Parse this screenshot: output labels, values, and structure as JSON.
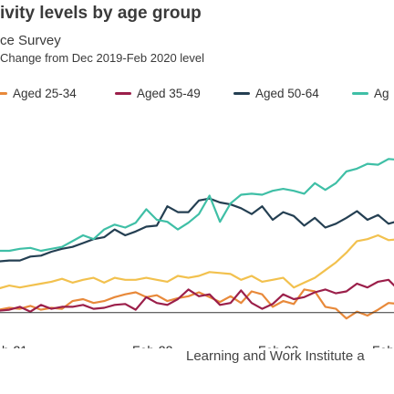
{
  "title": "ivity levels by age group",
  "subtitle": "ce Survey",
  "ylabel": "Change from Dec 2019-Feb 2020 level",
  "source": "Learning and Work Institute a",
  "legend": [
    {
      "label": "Aged 25-34",
      "color": "#e8893a"
    },
    {
      "label": "Aged 35-49",
      "color": "#9b1f4a"
    },
    {
      "label": "Aged 50-64",
      "color": "#243f52"
    },
    {
      "label": "Ag",
      "color": "#3fbfa6"
    }
  ],
  "chart_data": {
    "type": "line",
    "title": "ivity levels by age group",
    "subtitle": "ce Survey",
    "ylabel": "Change from Dec 2019-Feb 2020 level",
    "xlabel": "",
    "x_ticks": [
      "b-21",
      "Feb-22",
      "Feb-23",
      "Feb-2"
    ],
    "x_start": "Feb-21",
    "ylim": [
      -2,
      18
    ],
    "zero_line": true,
    "grid": false,
    "legend_position": "top",
    "series": [
      {
        "name": "Aged 25-34",
        "color": "#e8893a",
        "values": [
          -0.2,
          0.2,
          0.1,
          0.3,
          0.5,
          0.4,
          0.7,
          0.3,
          0.5,
          0.4,
          1.2,
          1.4,
          1.0,
          1.2,
          1.6,
          1.9,
          2.1,
          1.6,
          1.8,
          1.2,
          1.5,
          1.7,
          2.1,
          1.6,
          1.1,
          1.7,
          1.0,
          2.2,
          1.9,
          0.6,
          1.2,
          0.9,
          2.4,
          2.2,
          0.6,
          0.4,
          -0.6,
          0.1,
          -0.3,
          0.3,
          1.0,
          0.9,
          2.0,
          3.4,
          2.0,
          1.8,
          1.6
        ]
      },
      {
        "name": "Aged 35-49",
        "color": "#9b1f4a",
        "values": [
          0.2,
          -0.3,
          0.4,
          0.2,
          0.3,
          0.6,
          0.1,
          0.8,
          0.4,
          0.6,
          0.6,
          0.8,
          0.4,
          0.5,
          0.8,
          0.9,
          0.3,
          1.6,
          1.0,
          0.8,
          1.4,
          2.4,
          1.7,
          1.9,
          0.8,
          1.0,
          2.3,
          1.0,
          0.4,
          0.9,
          1.9,
          1.4,
          1.6,
          2.1,
          2.4,
          2.0,
          2.2,
          3.0,
          2.6,
          3.2,
          3.4,
          2.3,
          1.8,
          2.1,
          1.6,
          2.0,
          1.8
        ]
      },
      {
        "name": "Aged 50-64",
        "color": "#243f52",
        "values": [
          3.6,
          4.0,
          4.6,
          5.3,
          5.4,
          5.4,
          5.8,
          5.9,
          6.3,
          6.6,
          6.8,
          7.2,
          7.6,
          7.8,
          8.6,
          8.0,
          8.4,
          8.9,
          9.0,
          11.0,
          10.4,
          10.4,
          11.6,
          11.8,
          11.4,
          11.2,
          10.8,
          10.2,
          11.0,
          9.6,
          10.4,
          10.0,
          9.0,
          9.8,
          8.8,
          9.2,
          9.8,
          10.5,
          9.6,
          10.1,
          9.2,
          9.5,
          10.2,
          10.8,
          9.6,
          10.2,
          10.8
        ]
      },
      {
        "name": "Ag",
        "color": "#3fbfa6",
        "values": [
          5.4,
          5.6,
          6.1,
          6.4,
          6.4,
          6.6,
          6.7,
          6.4,
          6.6,
          6.8,
          7.4,
          8.0,
          7.6,
          8.6,
          9.1,
          8.8,
          9.3,
          10.7,
          9.6,
          9.4,
          8.6,
          9.3,
          10.2,
          12.1,
          9.4,
          11.3,
          12.2,
          12.3,
          12.2,
          12.6,
          12.8,
          12.6,
          12.3,
          13.4,
          12.7,
          13.4,
          14.6,
          14.9,
          15.4,
          15.3,
          15.9,
          15.8,
          16.7,
          17.7,
          17.6,
          17.4,
          17.6
        ]
      },
      {
        "name": "",
        "color": "#f2c14e",
        "values": [
          2.6,
          3.0,
          2.4,
          2.5,
          2.8,
          2.6,
          2.8,
          3.0,
          3.2,
          3.5,
          3.1,
          3.4,
          3.6,
          3.1,
          3.6,
          3.4,
          3.4,
          3.6,
          3.4,
          3.2,
          3.8,
          3.6,
          3.8,
          4.2,
          4.1,
          4.0,
          3.4,
          3.8,
          3.2,
          3.4,
          3.6,
          2.6,
          3.1,
          3.6,
          4.4,
          5.2,
          6.2,
          7.4,
          7.6,
          8.0,
          7.5,
          7.6,
          8.0,
          9.2,
          9.4,
          9.6,
          9.8
        ]
      }
    ]
  }
}
